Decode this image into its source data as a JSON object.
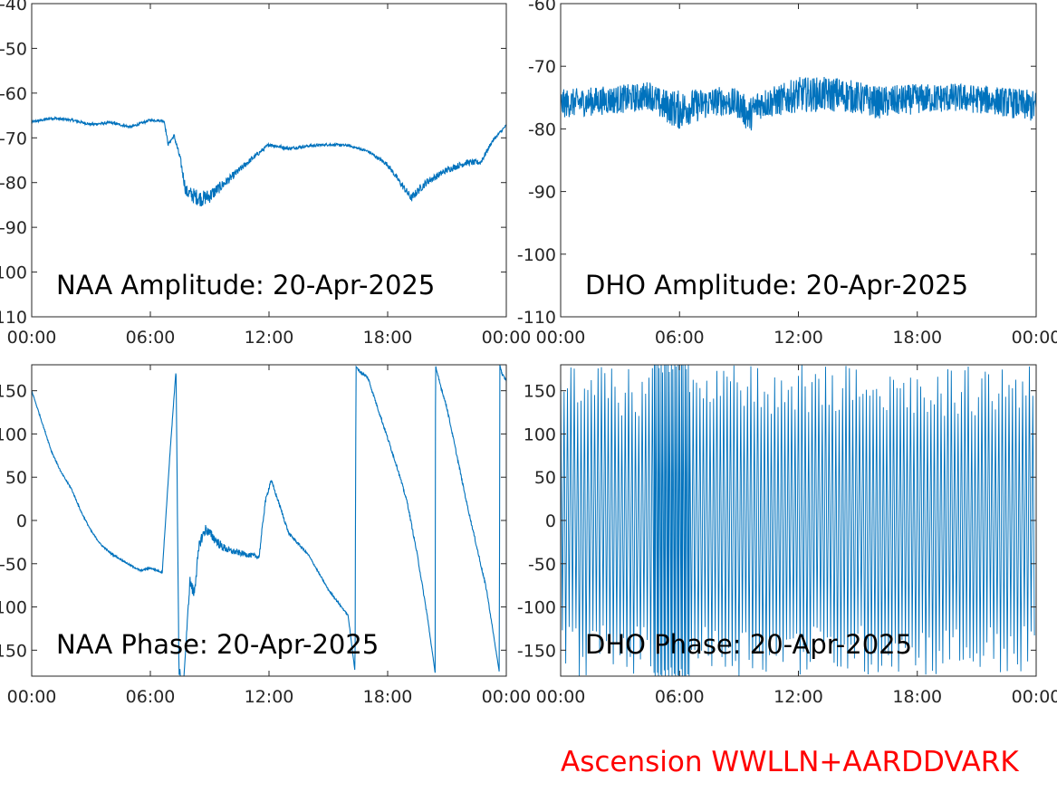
{
  "footer_text": "Ascension WWLLN+AARDDVARK",
  "footer_color": "#ff0000",
  "line_color": "#0072bd",
  "chart_data": [
    {
      "type": "line",
      "title": "NAA Amplitude: 20-Apr-2025",
      "xlabel": "",
      "ylabel": "",
      "xlim": [
        "00:00",
        "24:00"
      ],
      "ylim": [
        -110,
        -40
      ],
      "xticks": [
        "00:00",
        "06:00",
        "12:00",
        "18:00",
        "00:00"
      ],
      "yticks": [
        "-40",
        "-50",
        "-60",
        "-70",
        "-80",
        "-90",
        "-100",
        "-110"
      ],
      "grid": false,
      "series": [
        {
          "x_hours": [
            0,
            1,
            2,
            3,
            4,
            5,
            6,
            6.7,
            6.9,
            7.2,
            7.5,
            7.8,
            8.2,
            8.6,
            9.0,
            10,
            11,
            12,
            13,
            14,
            15,
            16,
            17,
            18,
            18.6,
            19.2,
            19.6,
            20,
            21,
            22,
            22.7,
            23.3,
            24
          ],
          "values": [
            -66.5,
            -65.6,
            -66,
            -67,
            -66.6,
            -67.6,
            -66,
            -66.2,
            -71.5,
            -69.5,
            -74.5,
            -82,
            -83,
            -83.6,
            -83,
            -79.2,
            -75.2,
            -71.5,
            -72.4,
            -71.8,
            -71.5,
            -71.7,
            -73,
            -76,
            -79.8,
            -83.5,
            -81.5,
            -79.8,
            -77.2,
            -75.5,
            -75.5,
            -70.7,
            -67.2
          ],
          "noise": [
            0.3,
            0.3,
            0.3,
            0.3,
            0.3,
            0.3,
            0.3,
            0.3,
            0.4,
            0.4,
            0.8,
            1.5,
            1.8,
            1.8,
            1.6,
            0.9,
            0.6,
            0.4,
            0.4,
            0.3,
            0.3,
            0.3,
            0.3,
            0.5,
            0.7,
            0.9,
            0.9,
            0.8,
            0.7,
            0.7,
            0.6,
            0.4,
            0.3
          ]
        }
      ]
    },
    {
      "type": "line",
      "title": "DHO Amplitude: 20-Apr-2025",
      "xlabel": "",
      "ylabel": "",
      "xlim": [
        "00:00",
        "24:00"
      ],
      "ylim": [
        -110,
        -60
      ],
      "xticks": [
        "00:00",
        "06:00",
        "12:00",
        "18:00",
        "00:00"
      ],
      "yticks": [
        "-60",
        "-70",
        "-80",
        "-90",
        "-100",
        "-110"
      ],
      "grid": false,
      "series": [
        {
          "x_hours": [
            0,
            2,
            4,
            4.5,
            5,
            6,
            6.5,
            8,
            9,
            9.5,
            10,
            11,
            12,
            13,
            14,
            15,
            16,
            18,
            20,
            22,
            24
          ],
          "values": [
            -76,
            -75.5,
            -75,
            -74.5,
            -76,
            -77,
            -76.5,
            -75.5,
            -76,
            -78,
            -76,
            -75.5,
            -74.5,
            -74.5,
            -74.5,
            -75,
            -75.8,
            -75.2,
            -75,
            -75.5,
            -76.5
          ],
          "noise": [
            2.3,
            2.3,
            2.3,
            2.3,
            2.5,
            3.2,
            2.8,
            2.3,
            2.4,
            2.8,
            2.5,
            2.5,
            2.8,
            2.8,
            2.8,
            2.6,
            2.6,
            2.4,
            2.3,
            2.3,
            2.6
          ]
        }
      ]
    },
    {
      "type": "line",
      "title": "NAA Phase: 20-Apr-2025",
      "xlabel": "",
      "ylabel": "",
      "xlim": [
        "00:00",
        "24:00"
      ],
      "ylim": [
        -180,
        180
      ],
      "xticks": [
        "00:00",
        "06:00",
        "12:00",
        "18:00",
        "00:00"
      ],
      "yticks": [
        "150",
        "100",
        "50",
        "0",
        "-50",
        "-100",
        "-150"
      ],
      "grid": false,
      "series": [
        {
          "x_hours": [
            0,
            0.5,
            1.0,
            1.5,
            2.0,
            2.5,
            3.0,
            3.5,
            4.0,
            4.5,
            5.0,
            5.5,
            6.0,
            6.6,
            7.0,
            7.3,
            7.45,
            7.5,
            7.52,
            7.7,
            8.0,
            8.2,
            8.5,
            8.8,
            9.2,
            9.6,
            10,
            11,
            11.5,
            11.8,
            12.1,
            12.5,
            13,
            14,
            15,
            16,
            16.35,
            16.4,
            16.6,
            17.0,
            17.5,
            18.0,
            18.5,
            19.0,
            19.5,
            20.0,
            20.4,
            20.42,
            20.5,
            21,
            22,
            23,
            23.65,
            23.67,
            23.8,
            24
          ],
          "values": [
            150,
            115,
            80,
            55,
            37,
            10,
            -12,
            -28,
            -38,
            -45,
            -52,
            -58,
            -55,
            -60,
            80,
            175,
            -180,
            -170,
            -185,
            -180,
            -70,
            -85,
            -25,
            -10,
            -20,
            -30,
            -35,
            -40,
            -42,
            20,
            47,
            20,
            -15,
            -40,
            -80,
            -110,
            -175,
            178,
            172,
            165,
            130,
            95,
            60,
            20,
            -40,
            -110,
            -176,
            180,
            170,
            130,
            20,
            -80,
            -176,
            180,
            168,
            162
          ],
          "noise": [
            1,
            1,
            1,
            1,
            1,
            1,
            1,
            1,
            1,
            1,
            1,
            1,
            1,
            1,
            1,
            1,
            0,
            0,
            0,
            0,
            6,
            8,
            7,
            6,
            6,
            5,
            4,
            3,
            3,
            3,
            2,
            2,
            2,
            1,
            1,
            1,
            0,
            0,
            2,
            2,
            2,
            2,
            2,
            2,
            2,
            2,
            0,
            0,
            2,
            2,
            2,
            2,
            0,
            0,
            2,
            2
          ]
        }
      ]
    },
    {
      "type": "line",
      "title": "DHO Phase: 20-Apr-2025",
      "xlabel": "",
      "ylabel": "",
      "xlim": [
        "00:00",
        "24:00"
      ],
      "ylim": [
        -180,
        180
      ],
      "xticks": [
        "00:00",
        "06:00",
        "12:00",
        "18:00",
        "00:00"
      ],
      "yticks": [
        "150",
        "100",
        "50",
        "0",
        "-50",
        "-100",
        "-150"
      ],
      "grid": false,
      "series": [
        {
          "wrap_cycles": 140,
          "range": [
            -180,
            180
          ]
        }
      ]
    }
  ]
}
